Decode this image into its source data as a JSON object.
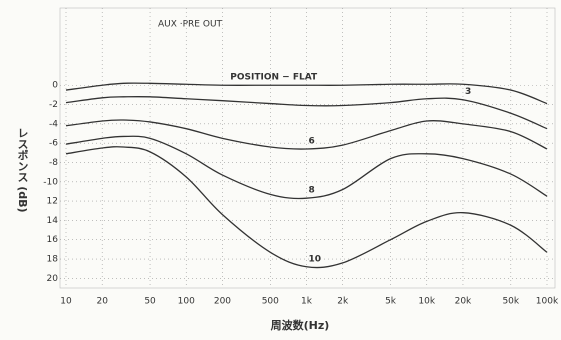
{
  "chart_data": {
    "type": "line",
    "title": "AUX ·PRE OUT",
    "x_label": "周波数(Hz)",
    "y_label": "レスポンス (dB)",
    "x_scale": "log",
    "grid": true,
    "x": [
      10,
      20,
      30,
      50,
      100,
      200,
      500,
      1000,
      2000,
      5000,
      10000,
      20000,
      50000,
      100000
    ],
    "xlim": [
      10,
      100000
    ],
    "xticks": [
      10,
      20,
      50,
      100,
      200,
      500,
      {
        "value": 1000,
        "label": "1k"
      },
      {
        "value": 2000,
        "label": "2k"
      },
      {
        "value": 5000,
        "label": "5k"
      },
      {
        "value": 10000,
        "label": "10k"
      },
      {
        "value": 20000,
        "label": "20k"
      },
      {
        "value": 50000,
        "label": "50k"
      },
      {
        "value": 100000,
        "label": "100k"
      }
    ],
    "ylim": [
      -21,
      8
    ],
    "yticks": [
      0,
      -2,
      -4,
      -6,
      -8,
      -10,
      {
        "value": -12,
        "label": "12"
      },
      {
        "value": -14,
        "label": "14"
      },
      {
        "value": -16,
        "label": "16"
      },
      {
        "value": -18,
        "label": "18"
      },
      {
        "value": -20,
        "label": "20"
      }
    ],
    "series": [
      {
        "name": "POSITION − FLAT",
        "color": "#2a2a2a",
        "values": [
          -0.5,
          0.0,
          0.2,
          0.2,
          0.1,
          0.0,
          0.0,
          0.0,
          0.0,
          0.1,
          0.1,
          0.1,
          -0.5,
          -1.9
        ]
      },
      {
        "name": "3",
        "color": "#2a2a2a",
        "values": [
          -1.8,
          -1.3,
          -1.2,
          -1.2,
          -1.4,
          -1.6,
          -1.9,
          -2.1,
          -2.1,
          -1.8,
          -1.4,
          -1.5,
          -2.9,
          -4.5
        ]
      },
      {
        "name": "6",
        "color": "#2a2a2a",
        "values": [
          -4.2,
          -3.7,
          -3.6,
          -3.8,
          -4.5,
          -5.5,
          -6.4,
          -6.6,
          -6.2,
          -4.7,
          -3.7,
          -4.0,
          -4.8,
          -6.6
        ]
      },
      {
        "name": "8",
        "color": "#2a2a2a",
        "values": [
          -6.1,
          -5.5,
          -5.3,
          -5.5,
          -7.1,
          -9.3,
          -11.3,
          -11.7,
          -10.8,
          -7.6,
          -7.1,
          -7.6,
          -9.2,
          -11.5
        ]
      },
      {
        "name": "10",
        "color": "#2a2a2a",
        "values": [
          -7.1,
          -6.5,
          -6.4,
          -6.9,
          -9.5,
          -13.4,
          -17.3,
          -18.8,
          -18.4,
          -16.0,
          -14.1,
          -13.2,
          -14.5,
          -17.3
        ]
      }
    ]
  }
}
